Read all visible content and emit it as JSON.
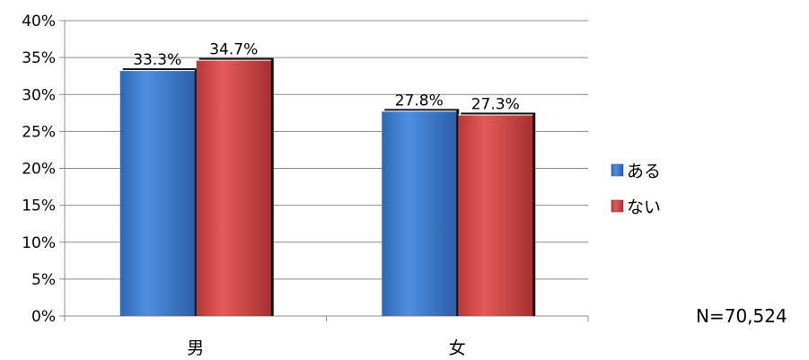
{
  "chart_data": {
    "type": "bar",
    "categories": [
      "男",
      "女"
    ],
    "series": [
      {
        "name": "ある",
        "values": [
          33.3,
          27.8
        ],
        "labels": [
          "33.3%",
          "27.8%"
        ],
        "color": "#3f7fd0"
      },
      {
        "name": "ない",
        "values": [
          34.7,
          27.3
        ],
        "labels": [
          "34.7%",
          "27.3%"
        ],
        "color": "#d94a4a"
      }
    ],
    "ylim": [
      0,
      40
    ],
    "yticks": [
      "0%",
      "5%",
      "10%",
      "15%",
      "20%",
      "25%",
      "30%",
      "35%",
      "40%"
    ],
    "grid": true,
    "legend_position": "right",
    "note": "N=70,524"
  }
}
